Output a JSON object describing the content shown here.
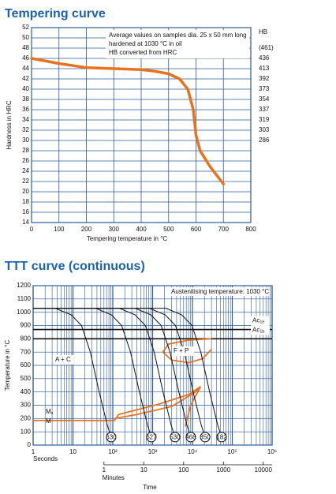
{
  "chart_data": [
    {
      "type": "line",
      "title": "Tempering curve",
      "x_label": "Tempering temperature in °C",
      "y_label": "Hardness in HRC",
      "xlim": [
        0,
        800
      ],
      "xticks": [
        0,
        100,
        200,
        300,
        400,
        500,
        600,
        700,
        800
      ],
      "ylim": [
        14,
        52
      ],
      "yticks": [
        14,
        16,
        18,
        20,
        22,
        24,
        26,
        28,
        30,
        32,
        34,
        36,
        38,
        40,
        42,
        44,
        46,
        48,
        50,
        52
      ],
      "grid": true,
      "x": [
        0,
        100,
        200,
        300,
        400,
        450,
        500,
        540,
        570,
        590,
        600,
        615,
        650,
        700
      ],
      "values": [
        46,
        45,
        44.2,
        44,
        43.8,
        43.5,
        43,
        42,
        40,
        36,
        31,
        28,
        25,
        21.5
      ],
      "color": "#e8731e",
      "annotation": [
        "Average values on samples dia. 25 x 50 mm long",
        "hardened at 1030 °C in oil",
        "HB converted from HRC"
      ],
      "hb_title": "HB",
      "hb_scale": [
        {
          "hrc": 48,
          "hb": 461,
          "hb_label": "(461)"
        },
        {
          "hrc": 46,
          "hb": 436
        },
        {
          "hrc": 44,
          "hb": 413
        },
        {
          "hrc": 42,
          "hb": 392
        },
        {
          "hrc": 40,
          "hb": 373
        },
        {
          "hrc": 38,
          "hb": 354
        },
        {
          "hrc": 36,
          "hb": 337
        },
        {
          "hrc": 34,
          "hb": 319
        },
        {
          "hrc": 32,
          "hb": 303
        },
        {
          "hrc": 30,
          "hb": 286
        }
      ]
    },
    {
      "type": "ttt",
      "title": "TTT curve (continuous)",
      "x_label": "Time",
      "x_unit_label": "Seconds",
      "x2_label": "Minutes",
      "y_label": "Temperature in °C",
      "xscale": "log",
      "xlim": [
        1,
        1000000
      ],
      "xticks": [
        1,
        10,
        {
          "value": 100,
          "label": "10²"
        },
        {
          "value": 1000,
          "label": "10³"
        },
        {
          "value": 10000,
          "label": "10⁴"
        },
        {
          "value": 100000,
          "label": "10⁵"
        },
        {
          "value": 1000000,
          "label": "10⁶"
        }
      ],
      "x2lim": [
        0.0166667,
        16666.667
      ],
      "x2ticks": [
        1,
        10,
        100,
        1000,
        10000
      ],
      "ylim": [
        0,
        1200
      ],
      "yticks": [
        0,
        100,
        200,
        300,
        400,
        500,
        600,
        700,
        800,
        900,
        1000,
        1100,
        1200
      ],
      "grid": true,
      "annotation": "Austenitising temperature: 1030 °C",
      "reference_lines": [
        {
          "label": "Ac",
          "sub": "1e",
          "value": 870
        },
        {
          "label": "Ac",
          "sub": "1b",
          "value": 800
        }
      ],
      "phase_labels": [
        "A + C",
        "F + P"
      ],
      "ms_label": {
        "label": "M",
        "sub": "s"
      },
      "m_label": "M",
      "curve_color": "#111111",
      "transformation_color": "#e8731e",
      "cooling_curves": [
        {
          "label": 630,
          "x": [
            1,
            3.6,
            9.1,
            16.4,
            27.3,
            45.5,
            72.8,
            91
          ],
          "y": [
            1030,
            1030,
            980,
            900,
            700,
            400,
            150,
            60
          ]
        },
        {
          "label": 627,
          "x": [
            1,
            37,
            93,
            167,
            279,
            465,
            744,
            930
          ],
          "y": [
            1030,
            1030,
            980,
            900,
            700,
            400,
            150,
            60
          ]
        },
        {
          "label": 530,
          "x": [
            1,
            146,
            365,
            657,
            1095,
            1825,
            2920,
            3650
          ],
          "y": [
            1030,
            1030,
            980,
            900,
            700,
            400,
            150,
            60
          ]
        },
        {
          "label": 468,
          "x": [
            1,
            364,
            910,
            1638,
            2730,
            4550,
            7280,
            9100
          ],
          "y": [
            1030,
            1030,
            980,
            900,
            700,
            400,
            150,
            60
          ]
        },
        {
          "label": 350,
          "x": [
            1,
            832,
            2080,
            3744,
            6240,
            10400,
            16640,
            20800
          ],
          "y": [
            1030,
            1030,
            980,
            900,
            700,
            400,
            150,
            60
          ]
        },
        {
          "label": 182,
          "x": [
            1,
            2160,
            5400,
            9720,
            16200,
            27000,
            43200,
            54000
          ],
          "y": [
            1030,
            1030,
            980,
            900,
            700,
            400,
            150,
            60
          ]
        }
      ],
      "transformation_lines": [
        {
          "x": [
            1,
            110,
            140,
            1500,
            8000,
            16000
          ],
          "y": [
            185,
            185,
            230,
            310,
            380,
            440
          ]
        },
        {
          "x": [
            110,
            400,
            3000,
            12000,
            16000
          ],
          "y": [
            200,
            230,
            290,
            400,
            440
          ]
        },
        {
          "x": [
            16000,
            9000,
            6600
          ],
          "y": [
            440,
            300,
            140
          ]
        },
        {
          "x": [
            30000,
            8000,
            2500,
            1800,
            3000,
            8000,
            18000,
            30000
          ],
          "y": [
            800,
            790,
            760,
            700,
            640,
            620,
            650,
            720
          ]
        }
      ]
    }
  ]
}
